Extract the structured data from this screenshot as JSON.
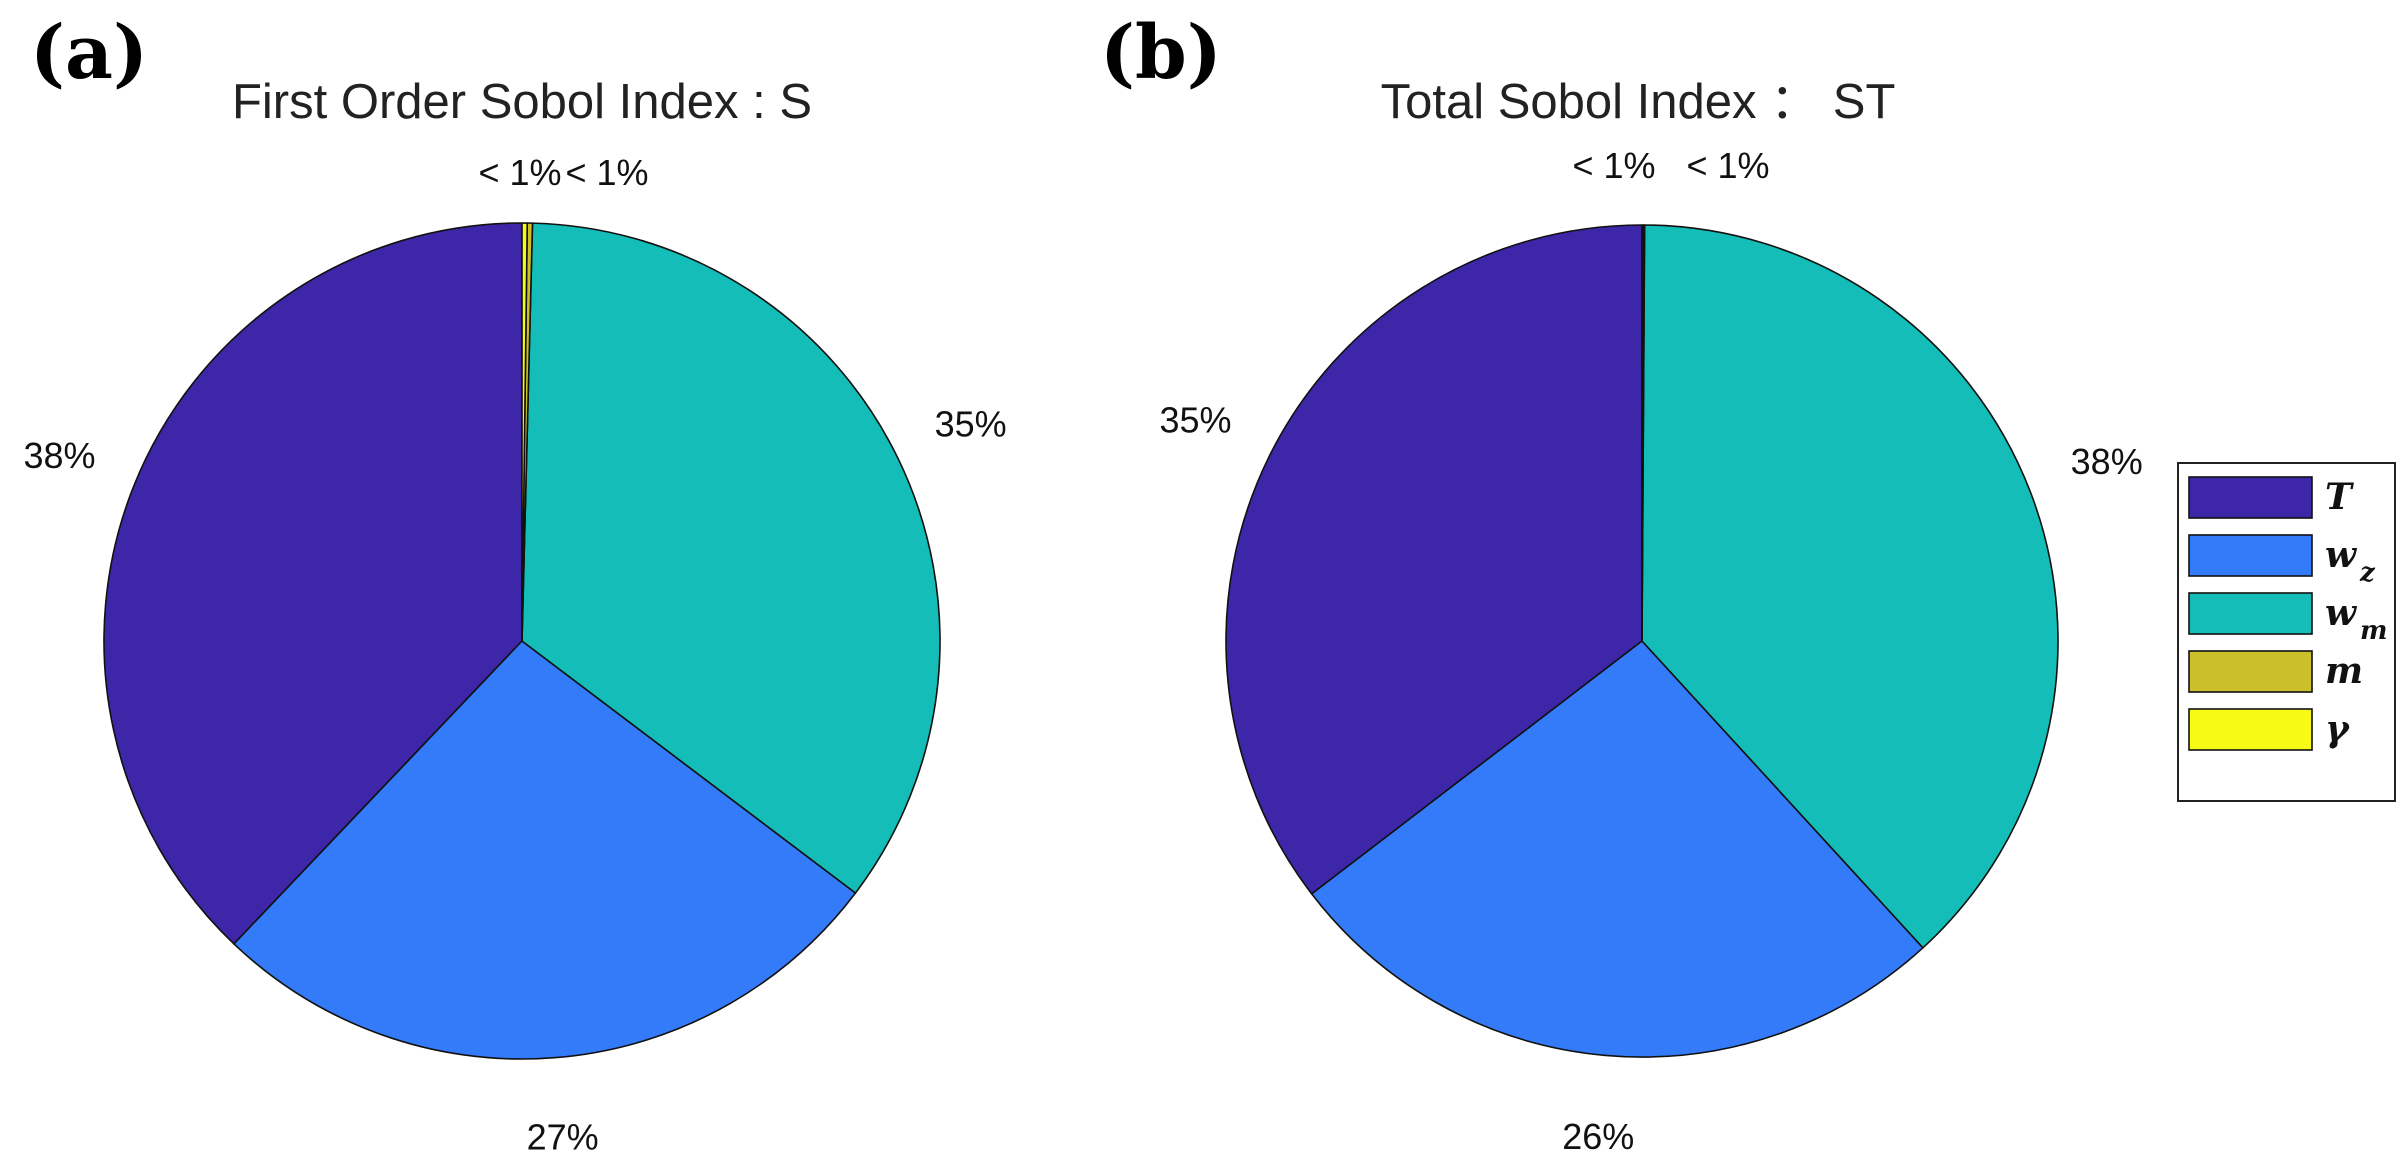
{
  "chart_data": [
    {
      "type": "pie",
      "panel_label": "(a)",
      "title": "First Order Sobol Index : S",
      "slices": [
        {
          "series": "T",
          "value": 37.9,
          "label": "38%",
          "color": "#3D26A8"
        },
        {
          "series": "w_z",
          "value": 26.8,
          "label": "27%",
          "color": "#347BFA"
        },
        {
          "series": "w_m",
          "value": 34.9,
          "label": "35%",
          "color": "#14BDB7"
        },
        {
          "series": "m",
          "value": 0.2,
          "label": "< 1%",
          "color": "#CCC02A"
        },
        {
          "series": "gamma",
          "value": 0.2,
          "label": "< 1%",
          "color": "#F7FA14"
        }
      ]
    },
    {
      "type": "pie",
      "panel_label": "(b)",
      "title": "Total Sobol Index ： ST",
      "slices": [
        {
          "series": "T",
          "value": 35.4,
          "label": "35%",
          "color": "#3D26A8"
        },
        {
          "series": "w_z",
          "value": 26.4,
          "label": "26%",
          "color": "#347BFA"
        },
        {
          "series": "w_m",
          "value": 38.1,
          "label": "38%",
          "color": "#14BDB7"
        },
        {
          "series": "m",
          "value": 0.05,
          "label": "< 1%",
          "color": "#CCC02A"
        },
        {
          "series": "gamma",
          "value": 0.05,
          "label": "< 1%",
          "color": "#F7FA14"
        }
      ]
    }
  ],
  "legend": {
    "placement": "right",
    "items": [
      {
        "symbol": "T",
        "sub": "",
        "color": "#3D26A8"
      },
      {
        "symbol": "w",
        "sub": "z",
        "color": "#347BFA"
      },
      {
        "symbol": "w",
        "sub": "m",
        "color": "#14BDB7"
      },
      {
        "symbol": "m",
        "sub": "",
        "color": "#CCC02A"
      },
      {
        "symbol": "γ",
        "sub": "",
        "color": "#F7FA14"
      }
    ]
  }
}
